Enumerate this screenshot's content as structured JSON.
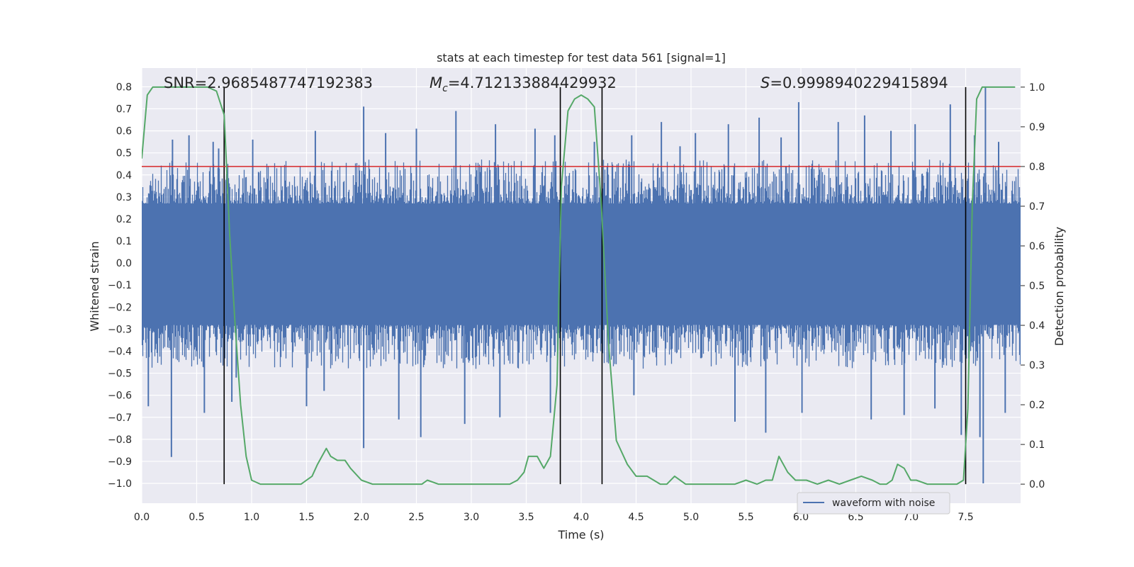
{
  "chart_data": {
    "type": "line",
    "title": "stats at each timestep for test data 561 [signal=1]",
    "xlabel": "Time (s)",
    "ylabel": "Whitened strain",
    "y2label": "Detection probability",
    "xlim": [
      0.0,
      8.0
    ],
    "ylim": [
      -1.09,
      0.885
    ],
    "y2lim": [
      -0.048,
      1.048
    ],
    "xticks": [
      0.0,
      0.5,
      1.0,
      1.5,
      2.0,
      2.5,
      3.0,
      3.5,
      4.0,
      4.5,
      5.0,
      5.5,
      6.0,
      6.5,
      7.0,
      7.5
    ],
    "xtick_labels": [
      "0.0",
      "0.5",
      "1.0",
      "1.5",
      "2.0",
      "2.5",
      "3.0",
      "3.5",
      "4.0",
      "4.5",
      "5.0",
      "5.5",
      "6.0",
      "6.5",
      "7.0",
      "7.5"
    ],
    "yticks": [
      0.8,
      0.7,
      0.6,
      0.5,
      0.4,
      0.3,
      0.2,
      0.1,
      0.0,
      -0.1,
      -0.2,
      -0.3,
      -0.4,
      -0.5,
      -0.6,
      -0.7,
      -0.8,
      -0.9,
      -1.0
    ],
    "ytick_labels": [
      "0.8",
      "0.7",
      "0.6",
      "0.5",
      "0.4",
      "0.3",
      "0.2",
      "0.1",
      "0.0",
      "−0.1",
      "−0.2",
      "−0.3",
      "−0.4",
      "−0.5",
      "−0.6",
      "−0.7",
      "−0.8",
      "−0.9",
      "−1.0"
    ],
    "y2ticks": [
      1.0,
      0.9,
      0.8,
      0.7,
      0.6,
      0.5,
      0.4,
      0.3,
      0.2,
      0.1,
      0.0
    ],
    "y2tick_labels": [
      "1.0",
      "0.9",
      "0.8",
      "0.7",
      "0.6",
      "0.5",
      "0.4",
      "0.3",
      "0.2",
      "0.1",
      "0.0"
    ],
    "annotations": {
      "snr": "SNR=2.9685487747192383",
      "mc_symbol": "M",
      "mc_sub": "c",
      "mc_value": "=4.712133884429932",
      "s_symbol": "S",
      "s_value": "=0.9998940229415894"
    },
    "threshold": {
      "value": 0.8,
      "axis": "right",
      "color": "#d62728"
    },
    "vertical_lines": [
      0.75,
      3.81,
      4.19,
      7.5
    ],
    "legend": {
      "label": "waveform with noise",
      "placement": "lower right"
    },
    "series": [
      {
        "name": "waveform with noise",
        "axis": "left",
        "color": "#4c72b0",
        "style": "noise band",
        "core_range": [
          -0.28,
          0.27
        ],
        "approx_peak_range": [
          -1.0,
          0.8
        ],
        "spikes": [
          [
            0.06,
            -0.65
          ],
          [
            0.27,
            -0.88
          ],
          [
            0.28,
            0.56
          ],
          [
            0.43,
            0.58
          ],
          [
            0.57,
            -0.68
          ],
          [
            0.65,
            0.55
          ],
          [
            0.7,
            0.52
          ],
          [
            0.82,
            -0.63
          ],
          [
            0.86,
            -0.52
          ],
          [
            1.01,
            0.56
          ],
          [
            1.5,
            -0.65
          ],
          [
            1.58,
            0.6
          ],
          [
            1.66,
            -0.58
          ],
          [
            2.02,
            0.71
          ],
          [
            2.02,
            -0.84
          ],
          [
            2.22,
            0.59
          ],
          [
            2.34,
            -0.71
          ],
          [
            2.5,
            0.61
          ],
          [
            2.54,
            -0.79
          ],
          [
            2.86,
            0.69
          ],
          [
            2.94,
            -0.73
          ],
          [
            3.22,
            0.63
          ],
          [
            3.26,
            -0.7
          ],
          [
            3.58,
            0.61
          ],
          [
            3.72,
            -0.68
          ],
          [
            3.76,
            0.58
          ],
          [
            4.12,
            0.55
          ],
          [
            4.46,
            0.58
          ],
          [
            4.48,
            -0.6
          ],
          [
            4.73,
            0.64
          ],
          [
            4.9,
            0.53
          ],
          [
            5.04,
            0.59
          ],
          [
            5.34,
            0.63
          ],
          [
            5.4,
            -0.72
          ],
          [
            5.62,
            0.66
          ],
          [
            5.68,
            -0.77
          ],
          [
            5.82,
            0.57
          ],
          [
            5.98,
            0.73
          ],
          [
            6.01,
            -0.68
          ],
          [
            6.34,
            0.64
          ],
          [
            6.58,
            0.67
          ],
          [
            6.64,
            -0.71
          ],
          [
            6.82,
            0.6
          ],
          [
            6.94,
            -0.69
          ],
          [
            7.04,
            0.63
          ],
          [
            7.22,
            -0.66
          ],
          [
            7.36,
            0.72
          ],
          [
            7.46,
            -0.78
          ],
          [
            7.58,
            0.58
          ],
          [
            7.63,
            -0.79
          ],
          [
            7.66,
            -1.0
          ],
          [
            7.68,
            0.8
          ],
          [
            7.8,
            0.55
          ],
          [
            7.86,
            -0.68
          ]
        ]
      },
      {
        "name": "",
        "axis": "right",
        "color": "#55a868",
        "x": [
          0.0,
          0.05,
          0.1,
          0.2,
          0.3,
          0.4,
          0.5,
          0.6,
          0.68,
          0.75,
          0.8,
          0.85,
          0.9,
          0.95,
          1.0,
          1.08,
          1.15,
          1.25,
          1.35,
          1.45,
          1.5,
          1.55,
          1.6,
          1.64,
          1.68,
          1.72,
          1.78,
          1.85,
          1.9,
          2.0,
          2.1,
          2.25,
          2.4,
          2.55,
          2.6,
          2.7,
          2.85,
          3.0,
          3.2,
          3.35,
          3.42,
          3.48,
          3.52,
          3.55,
          3.6,
          3.66,
          3.72,
          3.78,
          3.82,
          3.88,
          3.94,
          4.0,
          4.06,
          4.12,
          4.18,
          4.25,
          4.32,
          4.42,
          4.5,
          4.6,
          4.66,
          4.72,
          4.78,
          4.85,
          4.95,
          5.1,
          5.25,
          5.4,
          5.5,
          5.6,
          5.68,
          5.74,
          5.8,
          5.88,
          5.95,
          6.05,
          6.15,
          6.25,
          6.35,
          6.45,
          6.55,
          6.65,
          6.72,
          6.78,
          6.83,
          6.88,
          6.94,
          7.0,
          7.05,
          7.15,
          7.25,
          7.35,
          7.42,
          7.48,
          7.52,
          7.56,
          7.6,
          7.65,
          7.72,
          7.95
        ],
        "values": [
          0.82,
          0.98,
          1.0,
          1.0,
          1.0,
          1.0,
          1.0,
          1.0,
          0.99,
          0.93,
          0.63,
          0.4,
          0.2,
          0.07,
          0.01,
          0.0,
          0.0,
          0.0,
          0.0,
          0.0,
          0.01,
          0.02,
          0.05,
          0.07,
          0.09,
          0.07,
          0.06,
          0.06,
          0.04,
          0.01,
          0.0,
          0.0,
          0.0,
          0.0,
          0.01,
          0.0,
          0.0,
          0.0,
          0.0,
          0.0,
          0.01,
          0.03,
          0.07,
          0.07,
          0.07,
          0.04,
          0.07,
          0.25,
          0.75,
          0.94,
          0.97,
          0.98,
          0.97,
          0.95,
          0.72,
          0.35,
          0.11,
          0.05,
          0.02,
          0.02,
          0.01,
          0.0,
          0.0,
          0.02,
          0.0,
          0.0,
          0.0,
          0.0,
          0.01,
          0.0,
          0.01,
          0.01,
          0.07,
          0.03,
          0.01,
          0.01,
          0.0,
          0.01,
          0.0,
          0.01,
          0.02,
          0.01,
          0.0,
          0.0,
          0.01,
          0.05,
          0.04,
          0.01,
          0.01,
          0.0,
          0.0,
          0.0,
          0.0,
          0.01,
          0.19,
          0.7,
          0.97,
          1.0,
          1.0,
          1.0
        ]
      }
    ]
  }
}
